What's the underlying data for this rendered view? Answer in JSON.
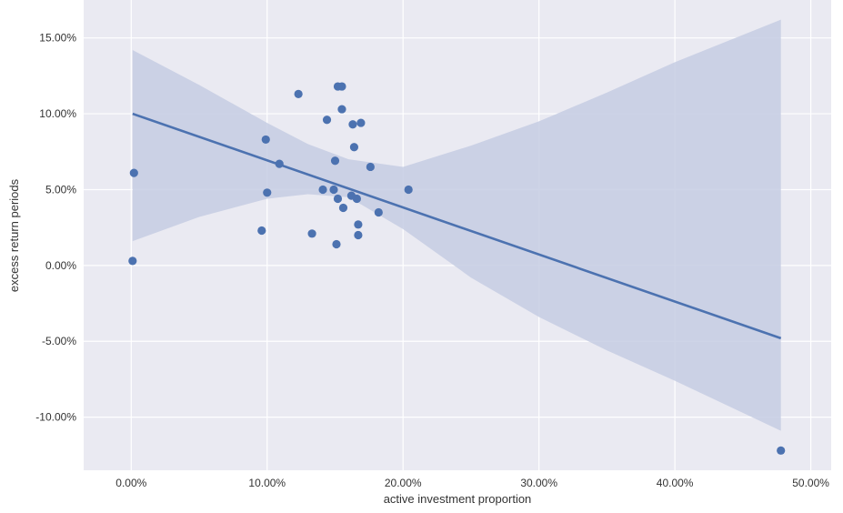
{
  "chart_data": {
    "type": "scatter",
    "xlabel": "active investment proportion",
    "ylabel": "excess return periods",
    "xlim": [
      -3.5,
      51.5
    ],
    "ylim": [
      -13.5,
      17.5
    ],
    "grid": true,
    "legend": "none",
    "x_ticks": [
      0,
      10,
      20,
      30,
      40,
      50
    ],
    "x_tick_labels": [
      "0.00%",
      "10.00%",
      "20.00%",
      "30.00%",
      "40.00%",
      "50.00%"
    ],
    "y_ticks": [
      -10,
      -5,
      0,
      5,
      10,
      15
    ],
    "y_tick_labels": [
      "-10.00%",
      "-5.00%",
      "0.00%",
      "5.00%",
      "10.00%",
      "15.00%"
    ],
    "points": [
      {
        "x": 0.2,
        "y": 6.1
      },
      {
        "x": 0.1,
        "y": 0.3
      },
      {
        "x": 9.6,
        "y": 2.3
      },
      {
        "x": 9.9,
        "y": 8.3
      },
      {
        "x": 10.0,
        "y": 4.8
      },
      {
        "x": 10.9,
        "y": 6.7
      },
      {
        "x": 12.3,
        "y": 11.3
      },
      {
        "x": 13.3,
        "y": 2.1
      },
      {
        "x": 14.1,
        "y": 5.0
      },
      {
        "x": 14.4,
        "y": 9.6
      },
      {
        "x": 14.9,
        "y": 5.0
      },
      {
        "x": 15.0,
        "y": 6.9
      },
      {
        "x": 15.1,
        "y": 1.4
      },
      {
        "x": 15.2,
        "y": 11.8
      },
      {
        "x": 15.2,
        "y": 4.4
      },
      {
        "x": 15.5,
        "y": 11.8
      },
      {
        "x": 15.5,
        "y": 10.3
      },
      {
        "x": 15.6,
        "y": 3.8
      },
      {
        "x": 16.2,
        "y": 4.6
      },
      {
        "x": 16.3,
        "y": 9.3
      },
      {
        "x": 16.4,
        "y": 7.8
      },
      {
        "x": 16.6,
        "y": 4.4
      },
      {
        "x": 16.7,
        "y": 2.7
      },
      {
        "x": 16.7,
        "y": 2.0
      },
      {
        "x": 16.9,
        "y": 9.4
      },
      {
        "x": 17.6,
        "y": 6.5
      },
      {
        "x": 18.2,
        "y": 3.5
      },
      {
        "x": 20.4,
        "y": 5.0
      },
      {
        "x": 47.8,
        "y": -12.2
      }
    ],
    "regression_line": [
      {
        "x": 0.1,
        "y": 10.0
      },
      {
        "x": 47.8,
        "y": -4.8
      }
    ],
    "confidence_band": [
      {
        "x": 0.1,
        "lower": 1.6,
        "upper": 14.2
      },
      {
        "x": 5,
        "lower": 3.2,
        "upper": 11.9
      },
      {
        "x": 10,
        "lower": 4.4,
        "upper": 9.4
      },
      {
        "x": 13,
        "lower": 4.7,
        "upper": 8.0
      },
      {
        "x": 16,
        "lower": 4.5,
        "upper": 7.0
      },
      {
        "x": 20,
        "lower": 2.4,
        "upper": 6.5
      },
      {
        "x": 25,
        "lower": -0.8,
        "upper": 7.9
      },
      {
        "x": 30,
        "lower": -3.4,
        "upper": 9.5
      },
      {
        "x": 35,
        "lower": -5.6,
        "upper": 11.4
      },
      {
        "x": 40,
        "lower": -7.6,
        "upper": 13.4
      },
      {
        "x": 47.8,
        "lower": -10.9,
        "upper": 16.2
      }
    ],
    "colors": {
      "background": "#eaeaf2",
      "grid": "#ffffff",
      "series": "#4c72b0",
      "band": "#c5cde3"
    }
  }
}
